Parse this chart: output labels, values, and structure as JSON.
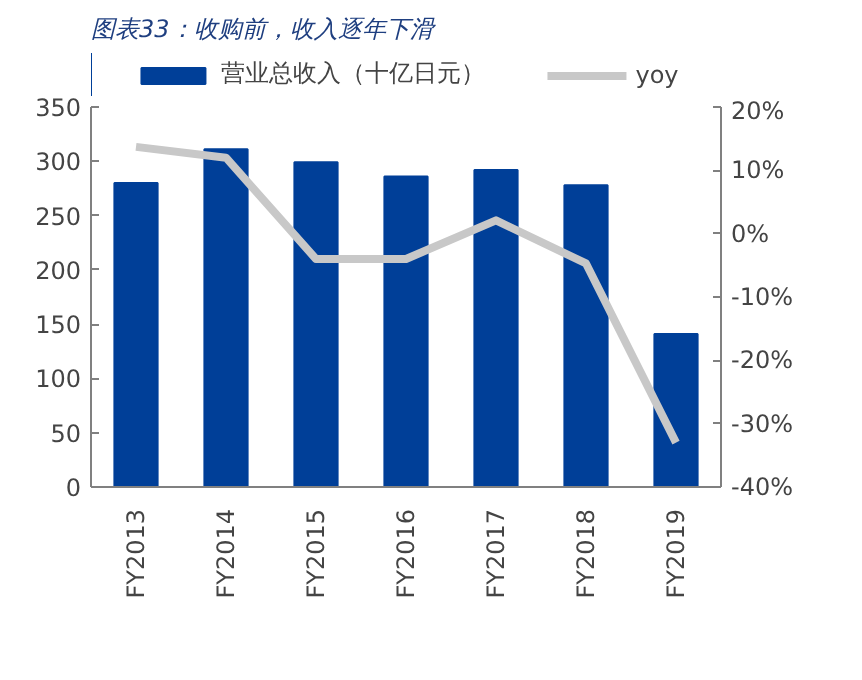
{
  "chart_data": {
    "type": "bar",
    "title": "图表33：收购前，收入逐年下滑",
    "categories": [
      "FY2013",
      "FY2014",
      "FY2015",
      "FY2016",
      "FY2017",
      "FY2018",
      "FY2019"
    ],
    "series": [
      {
        "name": "营业总收入（十亿日元）",
        "color": "#003f98",
        "values": [
          280,
          311,
          299,
          286,
          292,
          278,
          141
        ]
      },
      {
        "name": "yoy",
        "type": "line",
        "axis": "y2",
        "color": "#c8c8c8",
        "values": [
          13.7,
          12,
          -4,
          -4,
          2.1,
          -4.7,
          -33
        ]
      }
    ],
    "ylim": [
      0,
      350
    ],
    "yticks": [
      0,
      50,
      100,
      150,
      200,
      250,
      300,
      350
    ],
    "y2lim": [
      -40,
      20
    ],
    "y2ticks": [
      {
        "value": -40,
        "label": "-40%"
      },
      {
        "value": -30,
        "label": "-30%"
      },
      {
        "value": -20,
        "label": "-20%"
      },
      {
        "value": -10,
        "label": "-10%"
      },
      {
        "value": 0,
        "label": "0%"
      },
      {
        "value": 10,
        "label": "10%"
      },
      {
        "value": 20,
        "label": "20%"
      }
    ],
    "grid": false,
    "legend": "top",
    "marker": "none",
    "line_style": "solid"
  }
}
